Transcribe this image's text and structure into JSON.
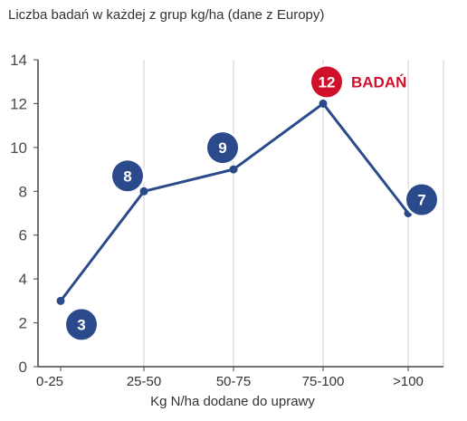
{
  "chart_data": {
    "type": "line",
    "title": "Liczba badań w każdej z grup kg/ha (dane z Europy)",
    "xlabel": "Kg N/ha dodane do uprawy",
    "ylabel": "",
    "categories": [
      "0-25",
      "25-50",
      "50-75",
      "75-100",
      ">100"
    ],
    "values": [
      3,
      8,
      9,
      12,
      7
    ],
    "ylim": [
      0,
      14
    ],
    "yticks": [
      "0",
      "2",
      "4",
      "6",
      "8",
      "10",
      "12",
      "14"
    ],
    "data_labels": [
      "3",
      "8",
      "9",
      "12",
      "7"
    ],
    "highlight_index": 3,
    "annotation": "BADAŃ",
    "grid": "vertical",
    "colors": {
      "line": "#2b4a8b",
      "marker": "#2b4a8b",
      "highlight": "#d0102a",
      "grid": "#cfcfcf"
    }
  }
}
